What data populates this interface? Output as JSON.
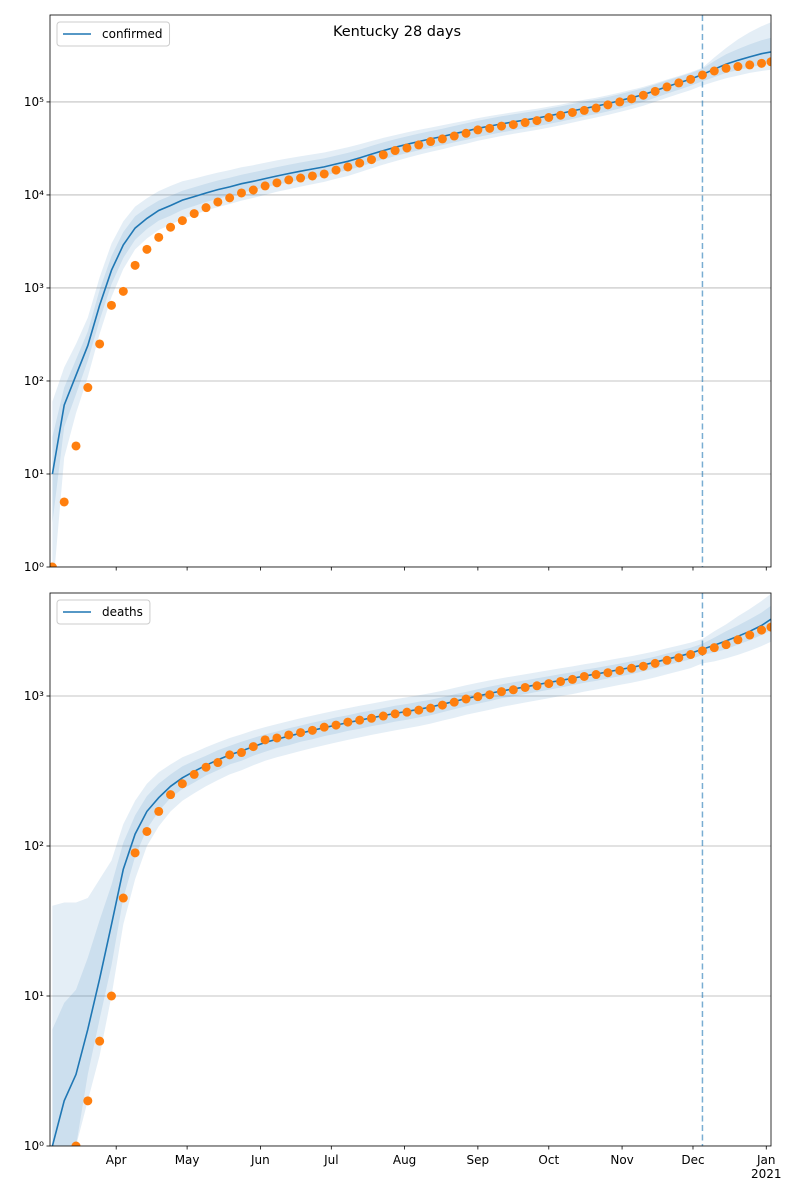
{
  "chart_data": [
    {
      "type": "line",
      "title": "Kentucky 28 days",
      "x": [
        "2020-03-05",
        "2020-03-10",
        "2020-03-15",
        "2020-03-20",
        "2020-03-25",
        "2020-03-30",
        "2020-04-04",
        "2020-04-09",
        "2020-04-14",
        "2020-04-19",
        "2020-04-24",
        "2020-04-29",
        "2020-05-04",
        "2020-05-09",
        "2020-05-14",
        "2020-05-19",
        "2020-05-24",
        "2020-05-29",
        "2020-06-03",
        "2020-06-08",
        "2020-06-13",
        "2020-06-18",
        "2020-06-23",
        "2020-06-28",
        "2020-07-03",
        "2020-07-08",
        "2020-07-13",
        "2020-07-18",
        "2020-07-23",
        "2020-07-28",
        "2020-08-02",
        "2020-08-07",
        "2020-08-12",
        "2020-08-17",
        "2020-08-22",
        "2020-08-27",
        "2020-09-01",
        "2020-09-06",
        "2020-09-11",
        "2020-09-16",
        "2020-09-21",
        "2020-09-26",
        "2020-10-01",
        "2020-10-06",
        "2020-10-11",
        "2020-10-16",
        "2020-10-21",
        "2020-10-26",
        "2020-10-31",
        "2020-11-05",
        "2020-11-10",
        "2020-11-15",
        "2020-11-20",
        "2020-11-25",
        "2020-11-30",
        "2020-12-05",
        "2020-12-10",
        "2020-12-15",
        "2020-12-20",
        "2020-12-25",
        "2020-12-30",
        "2021-01-03"
      ],
      "xlim": [
        "2020-03-04",
        "2021-01-03"
      ],
      "xticks": [
        "2020-04-01",
        "2020-05-01",
        "2020-06-01",
        "2020-07-01",
        "2020-08-01",
        "2020-09-01",
        "2020-10-01",
        "2020-11-01",
        "2020-12-01",
        "2021-01-01"
      ],
      "ylim": [
        1,
        860000
      ],
      "log_y": true,
      "grid": true,
      "legend": "upper left",
      "vline": "2020-12-05",
      "yticks": [
        {
          "value": 1,
          "label": "10⁰"
        },
        {
          "value": 10,
          "label": "10¹"
        },
        {
          "value": 100,
          "label": "10²"
        },
        {
          "value": 1000,
          "label": "10³"
        },
        {
          "value": 10000,
          "label": "10⁴"
        },
        {
          "value": 100000,
          "label": "10⁵"
        }
      ],
      "series": [
        {
          "name": "confirmed",
          "color": "#1f77b4",
          "values": [
            10,
            55,
            115,
            240,
            650,
            1550,
            2900,
            4400,
            5600,
            6800,
            7700,
            8800,
            9600,
            10500,
            11400,
            12200,
            13200,
            14000,
            15000,
            16000,
            17000,
            18000,
            19000,
            20000,
            21500,
            23000,
            25000,
            27500,
            30000,
            32500,
            35000,
            37500,
            40000,
            42500,
            45500,
            48500,
            52000,
            55000,
            58000,
            61000,
            64000,
            67000,
            71000,
            75000,
            80000,
            85000,
            90000,
            96000,
            103000,
            111000,
            120000,
            132000,
            146000,
            160000,
            176000,
            197000,
            225000,
            255000,
            280000,
            305000,
            330000,
            345000
          ]
        }
      ],
      "observed": {
        "color": "#ff7f0e",
        "values": [
          1,
          5,
          20,
          85,
          250,
          650,
          920,
          1750,
          2600,
          3500,
          4500,
          5300,
          6300,
          7300,
          8400,
          9300,
          10500,
          11300,
          12500,
          13500,
          14500,
          15200,
          16000,
          16800,
          18500,
          20000,
          22000,
          24000,
          27000,
          30000,
          32000,
          34500,
          37500,
          40000,
          43000,
          46000,
          50000,
          52000,
          55000,
          57000,
          60000,
          63000,
          68000,
          72000,
          77000,
          81000,
          86000,
          93000,
          100000,
          108000,
          118000,
          130000,
          145000,
          160000,
          175000,
          195000,
          215000,
          230000,
          240000,
          250000,
          260000,
          270000
        ]
      },
      "bands": [
        {
          "color": "#1f77b4",
          "lower": [
            0.5,
            15,
            45,
            110,
            320,
            800,
            1600,
            2600,
            3400,
            4200,
            4800,
            5500,
            6100,
            6800,
            7400,
            8000,
            8700,
            9300,
            10000,
            10800,
            11500,
            12300,
            13000,
            13800,
            14900,
            16000,
            17500,
            19300,
            21200,
            23000,
            25000,
            27000,
            29000,
            31000,
            33300,
            35500,
            38300,
            40500,
            43000,
            45300,
            47600,
            50000,
            53000,
            56000,
            60000,
            64000,
            68000,
            72500,
            78000,
            84000,
            91000,
            100500,
            111000,
            122000,
            134000,
            150000,
            165000,
            180000,
            192000,
            205000,
            215000,
            222000
          ],
          "upper": [
            60,
            140,
            250,
            480,
            1300,
            3000,
            5200,
            7500,
            9200,
            11000,
            12500,
            14000,
            15000,
            16200,
            17400,
            18500,
            19800,
            20900,
            22200,
            23500,
            24800,
            26000,
            27300,
            28600,
            30500,
            32500,
            35000,
            38000,
            41000,
            44000,
            47000,
            50000,
            53000,
            56000,
            59500,
            63000,
            67000,
            70500,
            74000,
            77500,
            81000,
            84500,
            89000,
            93500,
            99500,
            105500,
            111000,
            118000,
            126000,
            135000,
            145000,
            158000,
            174000,
            190000,
            208000,
            232000,
            300000,
            380000,
            470000,
            560000,
            650000,
            720000
          ]
        },
        {
          "color": "#1f77b4",
          "lower": [
            3,
            32,
            72,
            165,
            450,
            1100,
            2100,
            3300,
            4300,
            5300,
            6000,
            6900,
            7600,
            8400,
            9100,
            9800,
            10600,
            11300,
            12100,
            12900,
            13700,
            14500,
            15300,
            16100,
            17300,
            18500,
            20100,
            22100,
            24100,
            26200,
            28200,
            30200,
            32300,
            34300,
            36700,
            39100,
            42000,
            44500,
            47000,
            49500,
            52000,
            54500,
            58000,
            61500,
            65500,
            70000,
            74000,
            79000,
            85000,
            92000,
            100000,
            111000,
            123000,
            135000,
            149000,
            167000,
            185000,
            205000,
            220000,
            235000,
            250000,
            260000
          ],
          "upper": [
            25,
            85,
            170,
            340,
            950,
            2200,
            4000,
            5900,
            7300,
            8700,
            9800,
            11100,
            12100,
            13200,
            14300,
            15300,
            16500,
            17500,
            18700,
            19900,
            21100,
            22300,
            23500,
            24700,
            26500,
            28300,
            30700,
            33700,
            36700,
            39700,
            42600,
            45600,
            48600,
            51600,
            55100,
            58700,
            62900,
            66400,
            70000,
            73500,
            77000,
            80500,
            85000,
            89500,
            95000,
            101000,
            106500,
            113000,
            121000,
            130000,
            140000,
            154000,
            170000,
            186000,
            204000,
            227000,
            275000,
            325000,
            370000,
            415000,
            460000,
            490000
          ]
        }
      ]
    },
    {
      "type": "line",
      "x": [
        "2020-03-05",
        "2020-03-10",
        "2020-03-15",
        "2020-03-20",
        "2020-03-25",
        "2020-03-30",
        "2020-04-04",
        "2020-04-09",
        "2020-04-14",
        "2020-04-19",
        "2020-04-24",
        "2020-04-29",
        "2020-05-04",
        "2020-05-09",
        "2020-05-14",
        "2020-05-19",
        "2020-05-24",
        "2020-05-29",
        "2020-06-03",
        "2020-06-08",
        "2020-06-13",
        "2020-06-18",
        "2020-06-23",
        "2020-06-28",
        "2020-07-03",
        "2020-07-08",
        "2020-07-13",
        "2020-07-18",
        "2020-07-23",
        "2020-07-28",
        "2020-08-02",
        "2020-08-07",
        "2020-08-12",
        "2020-08-17",
        "2020-08-22",
        "2020-08-27",
        "2020-09-01",
        "2020-09-06",
        "2020-09-11",
        "2020-09-16",
        "2020-09-21",
        "2020-09-26",
        "2020-10-01",
        "2020-10-06",
        "2020-10-11",
        "2020-10-16",
        "2020-10-21",
        "2020-10-26",
        "2020-10-31",
        "2020-11-05",
        "2020-11-10",
        "2020-11-15",
        "2020-11-20",
        "2020-11-25",
        "2020-11-30",
        "2020-12-05",
        "2020-12-10",
        "2020-12-15",
        "2020-12-20",
        "2020-12-25",
        "2020-12-30",
        "2021-01-03"
      ],
      "xlim": [
        "2020-03-04",
        "2021-01-03"
      ],
      "xticks": [
        {
          "value": "2020-04-01",
          "label": "Apr"
        },
        {
          "value": "2020-05-01",
          "label": "May"
        },
        {
          "value": "2020-06-01",
          "label": "Jun"
        },
        {
          "value": "2020-07-01",
          "label": "Jul"
        },
        {
          "value": "2020-08-01",
          "label": "Aug"
        },
        {
          "value": "2020-09-01",
          "label": "Sep"
        },
        {
          "value": "2020-10-01",
          "label": "Oct"
        },
        {
          "value": "2020-11-01",
          "label": "Nov"
        },
        {
          "value": "2020-12-01",
          "label": "Dec"
        },
        {
          "value": "2021-01-01",
          "label": "Jan\n2021"
        }
      ],
      "ylim": [
        1,
        4860
      ],
      "log_y": true,
      "grid": true,
      "legend": "upper left",
      "vline": "2020-12-05",
      "yticks": [
        {
          "value": 1,
          "label": "10⁰"
        },
        {
          "value": 10,
          "label": "10¹"
        },
        {
          "value": 100,
          "label": "10²"
        },
        {
          "value": 1000,
          "label": "10³"
        }
      ],
      "series": [
        {
          "name": "deaths",
          "color": "#1f77b4",
          "values": [
            1,
            2,
            3,
            6,
            13,
            30,
            70,
            120,
            170,
            210,
            250,
            285,
            315,
            345,
            375,
            405,
            430,
            460,
            490,
            515,
            540,
            565,
            590,
            615,
            640,
            665,
            690,
            715,
            740,
            765,
            790,
            815,
            845,
            880,
            920,
            960,
            1000,
            1040,
            1080,
            1115,
            1150,
            1190,
            1230,
            1270,
            1310,
            1360,
            1400,
            1450,
            1500,
            1550,
            1610,
            1680,
            1760,
            1840,
            1930,
            2050,
            2180,
            2330,
            2500,
            2700,
            2950,
            3250
          ]
        }
      ],
      "observed": {
        "color": "#ff7f0e",
        "values": [
          null,
          null,
          1,
          2,
          5,
          10,
          45,
          90,
          125,
          170,
          220,
          260,
          300,
          335,
          360,
          405,
          420,
          460,
          510,
          525,
          550,
          570,
          590,
          620,
          640,
          670,
          690,
          710,
          735,
          760,
          780,
          805,
          830,
          870,
          910,
          955,
          990,
          1020,
          1070,
          1100,
          1140,
          1170,
          1210,
          1250,
          1290,
          1350,
          1390,
          1430,
          1480,
          1530,
          1580,
          1650,
          1730,
          1800,
          1890,
          2000,
          2100,
          2200,
          2370,
          2550,
          2750,
          2880
        ]
      },
      "bands": [
        {
          "color": "#1f77b4",
          "lower": [
            0.3,
            0.5,
            1,
            2,
            4,
            10,
            30,
            60,
            100,
            135,
            170,
            200,
            225,
            250,
            275,
            300,
            320,
            345,
            370,
            390,
            410,
            430,
            450,
            470,
            490,
            510,
            530,
            550,
            570,
            590,
            610,
            630,
            655,
            685,
            715,
            750,
            780,
            810,
            845,
            875,
            905,
            935,
            965,
            1000,
            1030,
            1070,
            1105,
            1145,
            1185,
            1225,
            1275,
            1330,
            1395,
            1460,
            1535,
            1650,
            1700,
            1780,
            1880,
            2000,
            2150,
            2300
          ],
          "upper": [
            40,
            42,
            42,
            45,
            60,
            80,
            140,
            200,
            260,
            310,
            350,
            390,
            420,
            455,
            490,
            525,
            555,
            590,
            620,
            650,
            680,
            710,
            740,
            770,
            800,
            830,
            860,
            890,
            920,
            950,
            980,
            1010,
            1045,
            1085,
            1130,
            1180,
            1225,
            1270,
            1315,
            1355,
            1395,
            1440,
            1485,
            1530,
            1575,
            1630,
            1675,
            1730,
            1790,
            1845,
            1910,
            1990,
            2080,
            2170,
            2270,
            2400,
            2700,
            3000,
            3400,
            3800,
            4300,
            4800
          ]
        },
        {
          "color": "#1f77b4",
          "lower": [
            0.5,
            1,
            1,
            3,
            7,
            16,
            45,
            85,
            130,
            170,
            210,
            240,
            265,
            295,
            320,
            350,
            370,
            400,
            425,
            450,
            470,
            495,
            515,
            540,
            560,
            585,
            605,
            630,
            650,
            675,
            695,
            720,
            745,
            780,
            815,
            855,
            890,
            925,
            965,
            995,
            1030,
            1065,
            1100,
            1140,
            1180,
            1225,
            1260,
            1310,
            1355,
            1400,
            1460,
            1525,
            1600,
            1680,
            1760,
            1880,
            1950,
            2050,
            2200,
            2350,
            2550,
            2750
          ],
          "upper": [
            6,
            9,
            11,
            18,
            32,
            55,
            105,
            160,
            215,
            260,
            300,
            340,
            370,
            400,
            435,
            465,
            495,
            525,
            555,
            580,
            610,
            635,
            665,
            690,
            720,
            745,
            775,
            800,
            830,
            860,
            885,
            915,
            945,
            980,
            1025,
            1065,
            1110,
            1155,
            1195,
            1235,
            1270,
            1315,
            1355,
            1400,
            1440,
            1495,
            1540,
            1590,
            1645,
            1700,
            1760,
            1830,
            1920,
            2000,
            2100,
            2230,
            2450,
            2700,
            2950,
            3250,
            3600,
            4000
          ]
        }
      ]
    }
  ]
}
